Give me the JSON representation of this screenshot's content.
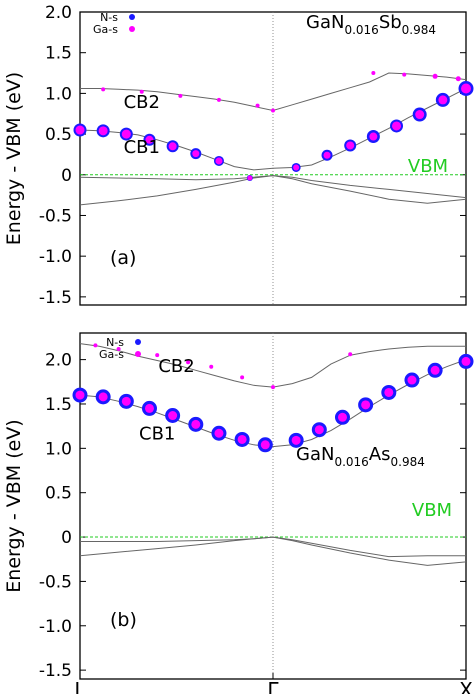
{
  "chart_data": [
    {
      "type": "scatter",
      "panel_label": "(a)",
      "material": {
        "base": "GaN",
        "sub1": "0.016",
        "mid": "Sb",
        "sub2": "0.984"
      },
      "ylabel": "Energy - VBM (eV)",
      "ylim": [
        -1.6,
        2.0
      ],
      "yticks": [
        "2.0",
        "1.5",
        "1.0",
        "0.5",
        "0",
        "-0.5",
        "-1.0",
        "-1.5"
      ],
      "ytick_values": [
        2.0,
        1.5,
        1.0,
        0.5,
        0,
        -0.5,
        -1.0,
        -1.5
      ],
      "xlim": [
        0,
        1
      ],
      "legend": [
        {
          "label": "N-s",
          "color": "#1a1aff"
        },
        {
          "label": "Ga-s",
          "color": "#ff00ff"
        }
      ],
      "annotations": [
        {
          "text": "CB2",
          "x": 0.16,
          "y": 0.82
        },
        {
          "text": "CB1",
          "x": 0.16,
          "y": 0.27
        }
      ],
      "vbm": {
        "label": "VBM",
        "value": 0,
        "color": "#22cc22"
      },
      "bands": [
        {
          "x": [
            0,
            0.05,
            0.1,
            0.15,
            0.2,
            0.25,
            0.3,
            0.35,
            0.4,
            0.45,
            0.5,
            0.55,
            0.6,
            0.65,
            0.7,
            0.75,
            0.8,
            0.85,
            0.9,
            0.95,
            1.0
          ],
          "y": [
            1.06,
            1.06,
            1.05,
            1.04,
            1.02,
            0.99,
            0.96,
            0.93,
            0.89,
            0.84,
            0.79,
            0.86,
            0.93,
            1.0,
            1.07,
            1.14,
            1.25,
            1.24,
            1.22,
            1.2,
            1.17
          ]
        },
        {
          "x": [
            0,
            0.05,
            0.1,
            0.15,
            0.2,
            0.25,
            0.3,
            0.35,
            0.4,
            0.45,
            0.5,
            0.55,
            0.6,
            0.65,
            0.7,
            0.75,
            0.8,
            0.85,
            0.9,
            0.95,
            1.0
          ],
          "y": [
            0.55,
            0.54,
            0.52,
            0.49,
            0.43,
            0.36,
            0.28,
            0.19,
            0.1,
            0.06,
            0.08,
            0.09,
            0.12,
            0.22,
            0.33,
            0.45,
            0.57,
            0.7,
            0.82,
            0.94,
            1.06
          ]
        },
        {
          "x": [
            0,
            0.1,
            0.2,
            0.3,
            0.4,
            0.45,
            0.5,
            0.55,
            0.6,
            0.7,
            0.8,
            0.9,
            1.0
          ],
          "y": [
            -0.03,
            -0.04,
            -0.05,
            -0.06,
            -0.05,
            -0.03,
            -0.01,
            -0.03,
            -0.07,
            -0.13,
            -0.18,
            -0.23,
            -0.28
          ]
        },
        {
          "x": [
            0,
            0.1,
            0.2,
            0.3,
            0.4,
            0.45,
            0.5,
            0.55,
            0.6,
            0.7,
            0.8,
            0.9,
            1.0
          ],
          "y": [
            -0.37,
            -0.32,
            -0.26,
            -0.18,
            -0.09,
            -0.04,
            -0.01,
            -0.05,
            -0.11,
            -0.2,
            -0.3,
            -0.35,
            -0.3
          ]
        }
      ],
      "series": [
        {
          "name": "N-s",
          "x": [
            0,
            0.06,
            0.12,
            0.18,
            0.24,
            0.3,
            0.36,
            0.44,
            0.56,
            0.64,
            0.7,
            0.76,
            0.82,
            0.88,
            0.94,
            1.0
          ],
          "y": [
            0.55,
            0.54,
            0.5,
            0.43,
            0.35,
            0.26,
            0.17,
            -0.04,
            0.09,
            0.24,
            0.36,
            0.47,
            0.6,
            0.74,
            0.92,
            1.06
          ],
          "size": [
            12,
            12,
            12,
            11,
            11,
            10,
            9,
            5,
            8,
            10,
            11,
            12,
            12,
            13,
            13,
            14
          ]
        },
        {
          "name": "Ga-s",
          "x": [
            0,
            0.06,
            0.12,
            0.18,
            0.24,
            0.3,
            0.36,
            0.44,
            0.56,
            0.64,
            0.7,
            0.76,
            0.82,
            0.88,
            0.94,
            1.0,
            0.06,
            0.16,
            0.26,
            0.36,
            0.46,
            0.5,
            0.76,
            0.84,
            0.92,
            0.98
          ],
          "y": [
            0.55,
            0.54,
            0.5,
            0.43,
            0.35,
            0.26,
            0.17,
            -0.04,
            0.09,
            0.24,
            0.36,
            0.47,
            0.6,
            0.74,
            0.92,
            1.06,
            1.05,
            1.02,
            0.97,
            0.92,
            0.85,
            0.79,
            1.25,
            1.23,
            1.21,
            1.18
          ],
          "size": [
            8,
            8,
            8,
            7,
            7,
            6,
            6,
            4,
            5,
            6,
            7,
            7,
            8,
            8,
            8,
            9,
            3,
            3,
            3,
            3,
            3,
            3,
            3,
            3,
            4,
            4
          ]
        }
      ]
    },
    {
      "type": "scatter",
      "panel_label": "(b)",
      "material": {
        "base": "GaN",
        "sub1": "0.016",
        "mid": "As",
        "sub2": "0.984"
      },
      "ylabel": "Energy - VBM (eV)",
      "ylim": [
        -1.6,
        2.3
      ],
      "yticks": [
        "2.0",
        "1.5",
        "1.0",
        "0.5",
        "0",
        "-0.5",
        "-1.0",
        "-1.5"
      ],
      "ytick_values": [
        2.0,
        1.5,
        1.0,
        0.5,
        0,
        -0.5,
        -1.0,
        -1.5
      ],
      "xlim": [
        0,
        1
      ],
      "xticks": [
        "L",
        "Γ",
        "X"
      ],
      "xtick_values": [
        0,
        0.5,
        1
      ],
      "legend": [
        {
          "label": "N-s",
          "color": "#1a1aff"
        },
        {
          "label": "Ga-s",
          "color": "#ff00ff"
        }
      ],
      "annotations": [
        {
          "text": "CB2",
          "x": 0.25,
          "y": 1.86
        },
        {
          "text": "CB1",
          "x": 0.2,
          "y": 1.1
        }
      ],
      "vbm": {
        "label": "VBM",
        "value": 0,
        "color": "#22cc22"
      },
      "bands": [
        {
          "x": [
            0,
            0.05,
            0.1,
            0.15,
            0.2,
            0.25,
            0.3,
            0.35,
            0.4,
            0.45,
            0.5,
            0.55,
            0.6,
            0.65,
            0.7,
            0.75,
            0.8,
            0.85,
            0.9,
            0.95,
            1.0
          ],
          "y": [
            2.18,
            2.15,
            2.1,
            2.04,
            1.99,
            1.94,
            1.88,
            1.82,
            1.76,
            1.71,
            1.69,
            1.73,
            1.8,
            1.95,
            2.05,
            2.09,
            2.12,
            2.14,
            2.15,
            2.15,
            2.15
          ]
        },
        {
          "x": [
            0,
            0.05,
            0.1,
            0.15,
            0.2,
            0.25,
            0.3,
            0.35,
            0.4,
            0.45,
            0.5,
            0.55,
            0.6,
            0.65,
            0.7,
            0.75,
            0.8,
            0.85,
            0.9,
            0.95,
            1.0
          ],
          "y": [
            1.6,
            1.58,
            1.53,
            1.47,
            1.4,
            1.32,
            1.24,
            1.16,
            1.09,
            1.04,
            1.02,
            1.04,
            1.1,
            1.2,
            1.33,
            1.47,
            1.6,
            1.72,
            1.83,
            1.92,
            2.0
          ]
        },
        {
          "x": [
            0,
            0.1,
            0.2,
            0.3,
            0.4,
            0.45,
            0.5,
            0.55,
            0.6,
            0.7,
            0.8,
            0.9,
            1.0
          ],
          "y": [
            -0.05,
            -0.05,
            -0.05,
            -0.04,
            -0.03,
            -0.02,
            0.0,
            -0.03,
            -0.07,
            -0.15,
            -0.22,
            -0.21,
            -0.21
          ]
        },
        {
          "x": [
            0,
            0.1,
            0.2,
            0.3,
            0.4,
            0.45,
            0.5,
            0.55,
            0.6,
            0.7,
            0.8,
            0.9,
            1.0
          ],
          "y": [
            -0.21,
            -0.17,
            -0.13,
            -0.09,
            -0.04,
            -0.02,
            0.0,
            -0.04,
            -0.09,
            -0.18,
            -0.26,
            -0.32,
            -0.28
          ]
        }
      ],
      "series": [
        {
          "name": "N-s",
          "x": [
            0,
            0.06,
            0.12,
            0.18,
            0.24,
            0.3,
            0.36,
            0.42,
            0.48,
            0.56,
            0.62,
            0.68,
            0.74,
            0.8,
            0.86,
            0.92,
            1.0
          ],
          "y": [
            1.6,
            1.58,
            1.53,
            1.45,
            1.37,
            1.27,
            1.17,
            1.1,
            1.04,
            1.09,
            1.21,
            1.35,
            1.49,
            1.63,
            1.77,
            1.88,
            1.98
          ],
          "size": [
            14,
            14,
            14,
            14,
            14,
            14,
            14,
            14,
            14,
            14,
            14,
            14,
            14,
            14,
            14,
            14,
            14
          ]
        },
        {
          "name": "Ga-s",
          "x": [
            0,
            0.06,
            0.12,
            0.18,
            0.24,
            0.3,
            0.36,
            0.42,
            0.48,
            0.56,
            0.62,
            0.68,
            0.74,
            0.8,
            0.86,
            0.92,
            1.0,
            0.04,
            0.1,
            0.2,
            0.28,
            0.34,
            0.42,
            0.5,
            0.7
          ],
          "y": [
            1.6,
            1.58,
            1.53,
            1.45,
            1.37,
            1.27,
            1.17,
            1.1,
            1.04,
            1.09,
            1.21,
            1.35,
            1.49,
            1.63,
            1.77,
            1.88,
            1.98,
            2.16,
            2.12,
            2.05,
            1.97,
            1.92,
            1.8,
            1.69,
            2.06
          ],
          "size": [
            8,
            8,
            8,
            8,
            8,
            8,
            8,
            8,
            8,
            8,
            8,
            8,
            8,
            8,
            8,
            8,
            8,
            3,
            3,
            3,
            3,
            3,
            3,
            3,
            3
          ]
        }
      ]
    }
  ]
}
